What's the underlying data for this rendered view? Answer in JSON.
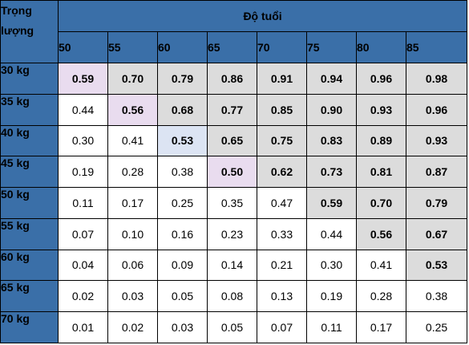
{
  "header": {
    "weight_label": "Trọng lượng",
    "age_label": "Độ tuổi"
  },
  "ages": [
    "50",
    "55",
    "60",
    "65",
    "70",
    "75",
    "80",
    "85"
  ],
  "rows": [
    {
      "weight": "30 kg",
      "values": [
        "0.59",
        "0.70",
        "0.79",
        "0.86",
        "0.91",
        "0.94",
        "0.96",
        "0.98"
      ],
      "highlight_from": 0,
      "diag": 0
    },
    {
      "weight": "35 kg",
      "values": [
        "0.44",
        "0.56",
        "0.68",
        "0.77",
        "0.85",
        "0.90",
        "0.93",
        "0.96"
      ],
      "highlight_from": 1,
      "diag": 1
    },
    {
      "weight": "40 kg",
      "values": [
        "0.30",
        "0.41",
        "0.53",
        "0.65",
        "0.75",
        "0.83",
        "0.89",
        "0.93"
      ],
      "highlight_from": 2,
      "diag": 2
    },
    {
      "weight": "45 kg",
      "values": [
        "0.19",
        "0.28",
        "0.38",
        "0.50",
        "0.62",
        "0.73",
        "0.81",
        "0.87"
      ],
      "highlight_from": 3,
      "diag": 3
    },
    {
      "weight": "50 kg",
      "values": [
        "0.11",
        "0.17",
        "0.25",
        "0.35",
        "0.47",
        "0.59",
        "0.70",
        "0.79"
      ],
      "highlight_from": 5,
      "diag": -1
    },
    {
      "weight": "55 kg",
      "values": [
        "0.07",
        "0.10",
        "0.16",
        "0.23",
        "0.33",
        "0.44",
        "0.56",
        "0.67"
      ],
      "highlight_from": 6,
      "diag": -1
    },
    {
      "weight": "60 kg",
      "values": [
        "0.04",
        "0.06",
        "0.09",
        "0.14",
        "0.21",
        "0.30",
        "0.41",
        "0.53"
      ],
      "highlight_from": 7,
      "diag": -1
    },
    {
      "weight": "65 kg",
      "values": [
        "0.02",
        "0.03",
        "0.05",
        "0.08",
        "0.13",
        "0.19",
        "0.28",
        "0.38"
      ],
      "highlight_from": 8,
      "diag": -1
    },
    {
      "weight": "70 kg",
      "values": [
        "0.01",
        "0.02",
        "0.03",
        "0.05",
        "0.07",
        "0.11",
        "0.17",
        "0.25"
      ],
      "highlight_from": 8,
      "diag": -1
    }
  ],
  "colors": {
    "header_bg": "#3a6fa8",
    "header_text": "#ffffff",
    "highlight_text": "#d0141c",
    "highlight_bg": "#dcdcdc",
    "diagonal_bg": "#e9dcef"
  }
}
